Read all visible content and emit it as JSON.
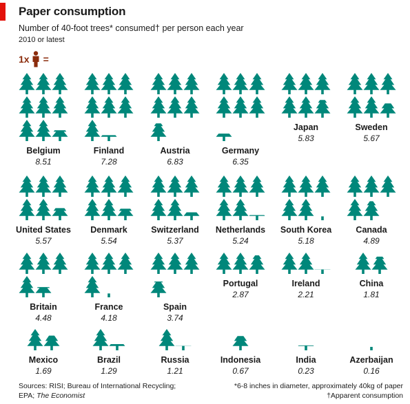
{
  "header": {
    "title": "Paper consumption",
    "subtitle": "Number of 40-foot trees* consumed† per person each year",
    "note": "2010 or latest",
    "key_ratio": "1x",
    "key_equals": "="
  },
  "colors": {
    "tree": "#00877a",
    "person": "#8b2c0c",
    "accent": "#e3120b"
  },
  "chart_data": {
    "type": "pictogram",
    "unit": "trees per person",
    "categories": [
      "Belgium",
      "Finland",
      "Austria",
      "Germany",
      "Japan",
      "Sweden",
      "United States",
      "Denmark",
      "Switzerland",
      "Netherlands",
      "South Korea",
      "Canada",
      "Britain",
      "France",
      "Spain",
      "Portugal",
      "Ireland",
      "China",
      "Mexico",
      "Brazil",
      "Russia",
      "Indonesia",
      "India",
      "Azerbaijan"
    ],
    "values": [
      8.51,
      7.28,
      6.83,
      6.35,
      5.83,
      5.67,
      5.57,
      5.54,
      5.37,
      5.24,
      5.18,
      4.89,
      4.48,
      4.18,
      3.74,
      2.87,
      2.21,
      1.81,
      1.69,
      1.29,
      1.21,
      0.67,
      0.23,
      0.16
    ],
    "value_labels": [
      "8.51",
      "7.28",
      "6.83",
      "6.35",
      "5.83",
      "5.67",
      "5.57",
      "5.54",
      "5.37",
      "5.24",
      "5.18",
      "4.89",
      "4.48",
      "4.18",
      "3.74",
      "2.87",
      "2.21",
      "1.81",
      "1.69",
      "1.29",
      "1.21",
      "0.67",
      "0.23",
      "0.16"
    ]
  },
  "footer": {
    "sources_line1": "Sources: RISI; Bureau of International Recycling;",
    "sources_line2_prefix": "EPA; ",
    "sources_line2_italic": "The Economist",
    "footnote1": "*6-8 inches in diameter, approximately 40kg of paper",
    "footnote2": "†Apparent consumption"
  }
}
